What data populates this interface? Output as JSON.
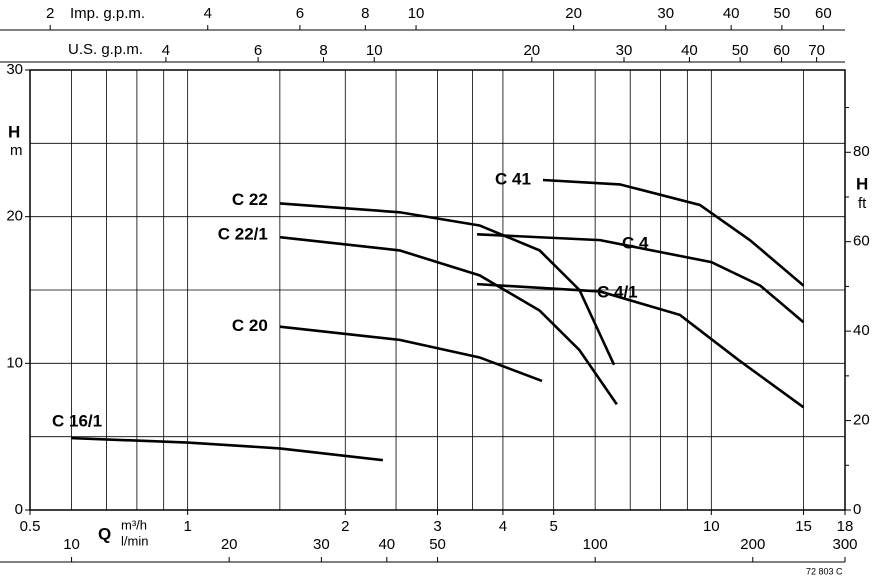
{
  "chart_data": {
    "type": "line",
    "x_label": "Q",
    "x_unit": "m³/h",
    "xscale": "log",
    "xlim": [
      0.5,
      18
    ],
    "xticks": [
      0.5,
      1,
      2,
      3,
      4,
      5,
      10,
      15,
      18
    ],
    "xgrid": [
      0.6,
      0.7,
      0.8,
      0.9,
      1,
      1.5,
      2,
      2.5,
      3,
      3.5,
      4,
      5,
      6,
      7,
      8,
      9,
      10,
      15
    ],
    "y_label": "H",
    "y_unit": "m",
    "ylim": [
      0,
      30
    ],
    "yticks": [
      0,
      10,
      20,
      30
    ],
    "ygrid": [
      5,
      10,
      15,
      20,
      25
    ],
    "y2_label": "H",
    "y2_unit": "ft",
    "y2lim": [
      0,
      98.4
    ],
    "y2ticks": [
      0,
      20,
      40,
      60,
      80
    ],
    "y2minor": [
      10,
      30,
      50,
      70,
      90
    ],
    "top_axes": [
      {
        "label": "Imp. g.p.m.",
        "lim": [
          1.83,
          66
        ],
        "ticks": [
          2,
          4,
          6,
          8,
          10,
          20,
          30,
          40,
          50,
          60
        ]
      },
      {
        "label": "U.S. g.p.m.",
        "lim": [
          2.2,
          79.3
        ],
        "ticks": [
          4,
          6,
          8,
          10,
          20,
          30,
          40,
          50,
          60,
          70
        ]
      }
    ],
    "bottom_axis2": {
      "label": "l/min",
      "lim": [
        8.33,
        300
      ],
      "ticks": [
        10,
        20,
        30,
        40,
        50,
        100,
        200,
        300
      ]
    },
    "code": "72 803 C",
    "series": [
      {
        "name": "C 16/1",
        "color": "#000000",
        "x": [
          0.6,
          1,
          1.5,
          2.36
        ],
        "values": [
          4.9,
          4.6,
          4.2,
          3.4
        ]
      },
      {
        "name": "C 20",
        "color": "#000000",
        "x": [
          1.5,
          2.54,
          3.61,
          4.75
        ],
        "values": [
          12.5,
          11.6,
          10.4,
          8.8
        ]
      },
      {
        "name": "C 22",
        "color": "#000000",
        "x": [
          1.5,
          2.54,
          3.61,
          4.7,
          5.6,
          6.52
        ],
        "values": [
          20.9,
          20.3,
          19.4,
          17.7,
          15.0,
          9.9
        ]
      },
      {
        "name": "C 22/1",
        "color": "#000000",
        "x": [
          1.5,
          2.54,
          3.61,
          4.7,
          5.6,
          6.6
        ],
        "values": [
          18.6,
          17.7,
          16.0,
          13.6,
          10.9,
          7.2
        ]
      },
      {
        "name": "C 4",
        "color": "#000000",
        "x": [
          3.57,
          6.13,
          10,
          12.4,
          15
        ],
        "values": [
          18.8,
          18.4,
          16.9,
          15.3,
          12.8
        ]
      },
      {
        "name": "C 4/1",
        "color": "#000000",
        "x": [
          3.57,
          6.13,
          8.71,
          11.3,
          15
        ],
        "values": [
          15.4,
          14.9,
          13.3,
          10.2,
          7.0
        ]
      },
      {
        "name": "C 41",
        "color": "#000000",
        "x": [
          4.77,
          6.69,
          9.51,
          11.85,
          15
        ],
        "values": [
          22.5,
          22.2,
          20.8,
          18.4,
          15.3
        ]
      }
    ]
  }
}
